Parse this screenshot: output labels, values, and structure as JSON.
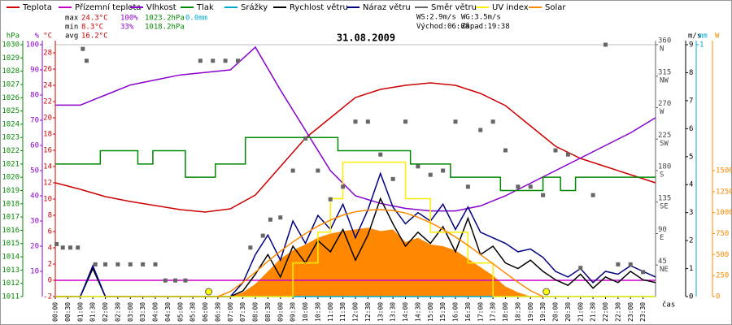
{
  "chart_data": {
    "type": "line",
    "title": "31.08.2009",
    "x_label": "čas",
    "xlim": [
      0,
      24
    ],
    "xticks": [
      {
        "value": 0,
        "label": "00:00"
      },
      {
        "value": 0.5,
        "label": "00:30"
      },
      {
        "value": 1,
        "label": "01:00"
      },
      {
        "value": 1.5,
        "label": "01:30"
      },
      {
        "value": 2,
        "label": "02:00"
      },
      {
        "value": 2.5,
        "label": "02:30"
      },
      {
        "value": 3,
        "label": "03:00"
      },
      {
        "value": 3.5,
        "label": "03:30"
      },
      {
        "value": 4,
        "label": "04:00"
      },
      {
        "value": 4.5,
        "label": "04:30"
      },
      {
        "value": 5,
        "label": "05:00"
      },
      {
        "value": 5.5,
        "label": "05:30"
      },
      {
        "value": 6,
        "label": "06:00"
      },
      {
        "value": 6.5,
        "label": "06:30"
      },
      {
        "value": 7,
        "label": "07:00"
      },
      {
        "value": 7.5,
        "label": "07:30"
      },
      {
        "value": 8,
        "label": "08:00"
      },
      {
        "value": 8.5,
        "label": "08:30"
      },
      {
        "value": 9,
        "label": "09:00"
      },
      {
        "value": 9.5,
        "label": "09:30"
      },
      {
        "value": 10,
        "label": "10:00"
      },
      {
        "value": 10.5,
        "label": "10:30"
      },
      {
        "value": 11,
        "label": "11:00"
      },
      {
        "value": 11.5,
        "label": "11:30"
      },
      {
        "value": 12,
        "label": "12:00"
      },
      {
        "value": 12.5,
        "label": "12:30"
      },
      {
        "value": 13,
        "label": "13:00"
      },
      {
        "value": 13.5,
        "label": "13:30"
      },
      {
        "value": 14,
        "label": "14:00"
      },
      {
        "value": 14.5,
        "label": "14:30"
      },
      {
        "value": 15,
        "label": "15:00"
      },
      {
        "value": 15.5,
        "label": "15:30"
      },
      {
        "value": 16,
        "label": "16:00"
      },
      {
        "value": 16.5,
        "label": "16:30"
      },
      {
        "value": 17,
        "label": "17:00"
      },
      {
        "value": 17.5,
        "label": "17:30"
      },
      {
        "value": 18,
        "label": "18:00"
      },
      {
        "value": 18.5,
        "label": "18:30"
      },
      {
        "value": 19,
        "label": "19:00"
      },
      {
        "value": 19.5,
        "label": "19:30"
      },
      {
        "value": 20,
        "label": "20:00"
      },
      {
        "value": 20.5,
        "label": "20:30"
      },
      {
        "value": 21,
        "label": "21:00"
      },
      {
        "value": 21.5,
        "label": "21:30"
      },
      {
        "value": 22,
        "label": "22:00"
      },
      {
        "value": 22.5,
        "label": "22:30"
      },
      {
        "value": 23,
        "label": "23:00"
      },
      {
        "value": 23.5,
        "label": "23:30"
      }
    ],
    "axes": {
      "hpa": {
        "label": "hPa",
        "color": "#008800",
        "lim": [
          1011,
          1030
        ],
        "ticks": [
          1011,
          1012,
          1013,
          1014,
          1015,
          1016,
          1017,
          1018,
          1019,
          1020,
          1021,
          1022,
          1023,
          1024,
          1025,
          1026,
          1027,
          1028,
          1029,
          1030
        ]
      },
      "pct": {
        "label": "%",
        "color": "#8800cc",
        "lim": [
          0,
          100
        ],
        "ticks": [
          10,
          20,
          30,
          40,
          50,
          60,
          70,
          80,
          90,
          100
        ]
      },
      "temp": {
        "label": "°C",
        "color": "#cc0000",
        "lim": [
          -2,
          29
        ],
        "ticks": [
          -2,
          0,
          2,
          4,
          6,
          8,
          10,
          12,
          14,
          16,
          18,
          20,
          22,
          24,
          26,
          28
        ]
      },
      "dir": {
        "color": "#666666",
        "lim": [
          0,
          360
        ],
        "ticks": [
          {
            "value": 45,
            "label": "NE"
          },
          {
            "value": 90,
            "label": "E"
          },
          {
            "value": 135,
            "label": "SE"
          },
          {
            "value": 180,
            "label": "S"
          },
          {
            "value": 225,
            "label": "SW"
          },
          {
            "value": 270,
            "label": "W"
          },
          {
            "value": 315,
            "label": "NW"
          },
          {
            "value": 360,
            "label": "N"
          }
        ]
      },
      "wind": {
        "label": "m/s",
        "color": "#000000",
        "lim": [
          0,
          9
        ],
        "ticks": [
          0,
          1,
          2,
          3,
          4,
          5,
          6,
          7,
          8,
          9
        ]
      },
      "mm": {
        "label": "mm",
        "color": "#00aacc",
        "lim": [
          0,
          1
        ],
        "ticks": [
          1
        ]
      },
      "solar": {
        "label": "W",
        "color": "#ff8800",
        "lim": [
          0,
          3000
        ],
        "ticks": [
          0,
          250,
          500,
          750,
          1000,
          1250,
          1500
        ]
      }
    },
    "x": [
      0,
      0.5,
      1,
      1.5,
      2,
      2.5,
      3,
      3.5,
      4,
      4.5,
      5,
      5.5,
      6,
      6.5,
      7,
      7.5,
      8,
      8.5,
      9,
      9.5,
      10,
      10.5,
      11,
      11.5,
      12,
      12.5,
      13,
      13.5,
      14,
      14.5,
      15,
      15.5,
      16,
      16.5,
      17,
      17.5,
      18,
      18.5,
      19,
      19.5,
      20,
      20.5,
      21,
      21.5,
      22,
      22.5,
      23,
      23.5,
      24
    ],
    "series": [
      {
        "name": "Teplota",
        "color": "#cc0000",
        "axis": "temp",
        "kind": "line",
        "x": [
          0,
          1,
          2,
          3,
          4,
          5,
          6,
          7,
          8,
          9,
          10,
          11,
          12,
          13,
          14,
          15,
          16,
          17,
          18,
          19,
          20,
          21,
          22,
          23,
          24
        ],
        "values": [
          12,
          11.2,
          10.3,
          9.7,
          9.2,
          8.7,
          8.4,
          8.8,
          10.5,
          14,
          17.5,
          20,
          22.5,
          23.5,
          24,
          24.3,
          24,
          23,
          21.5,
          19,
          16.5,
          15,
          14,
          13,
          12
        ]
      },
      {
        "name": "Přízemní teplota",
        "color": "#cc00cc",
        "axis": "temp",
        "kind": "line",
        "x": [
          0,
          24
        ],
        "values": [
          0,
          0
        ]
      },
      {
        "name": "Vlhkost",
        "color": "#8800cc",
        "axis": "pct",
        "kind": "line",
        "x": [
          0,
          1,
          2,
          3,
          4,
          5,
          6,
          7,
          8,
          9,
          10,
          11,
          12,
          13,
          14,
          15,
          16,
          17,
          18,
          19,
          20,
          21,
          22,
          23,
          24
        ],
        "values": [
          76,
          76,
          80,
          84,
          86,
          88,
          89,
          90,
          99,
          82,
          66,
          50,
          40,
          37,
          35,
          34,
          34,
          36,
          40,
          45,
          50,
          55,
          60,
          65,
          71
        ]
      },
      {
        "name": "Tlak",
        "color": "#008800",
        "axis": "hpa",
        "kind": "line",
        "x": [
          0,
          1.8,
          1.8,
          3.3,
          3.3,
          3.9,
          3.9,
          5.2,
          5.2,
          6.4,
          6.4,
          7.6,
          7.6,
          11.3,
          11.3,
          14.2,
          14.2,
          15.8,
          15.8,
          17.8,
          17.8,
          19.5,
          19.5,
          20.2,
          20.2,
          20.8,
          20.8,
          24
        ],
        "values": [
          1021,
          1021,
          1022,
          1022,
          1021,
          1021,
          1022,
          1022,
          1020,
          1020,
          1021,
          1021,
          1023,
          1023,
          1022,
          1022,
          1021,
          1021,
          1020,
          1020,
          1019,
          1019,
          1020,
          1020,
          1019,
          1019,
          1020,
          1020
        ]
      },
      {
        "name": "Srážky",
        "color": "#00aacc",
        "axis": "mm",
        "kind": "line",
        "x": [
          0,
          24
        ],
        "values": [
          0,
          0
        ]
      },
      {
        "name": "Rychlost větru",
        "color": "#000000",
        "axis": "wind",
        "kind": "line",
        "values": [
          0,
          0,
          0,
          1,
          0,
          0,
          0,
          0,
          0,
          0,
          0,
          0,
          0,
          0,
          0,
          0.2,
          0.8,
          1.5,
          0.7,
          1.8,
          1.2,
          2.0,
          1.6,
          2.4,
          1.3,
          2.2,
          3.5,
          2.6,
          1.8,
          2.3,
          1.9,
          2.5,
          1.6,
          2.8,
          1.5,
          1.8,
          1.2,
          1.0,
          1.3,
          0.9,
          0.6,
          0.4,
          0.8,
          0.3,
          0.7,
          0.5,
          0.9,
          0.6,
          0.5
        ]
      },
      {
        "name": "Náraz větru",
        "color": "#000080",
        "axis": "wind",
        "kind": "line",
        "values": [
          0,
          0,
          0,
          1.1,
          0,
          0,
          0,
          0,
          0,
          0,
          0,
          0,
          0,
          0,
          0,
          0.5,
          1.5,
          2.2,
          1.3,
          2.7,
          1.9,
          2.9,
          2.4,
          3.3,
          2.1,
          3.1,
          4.4,
          3.2,
          2.6,
          3.0,
          2.7,
          3.3,
          2.4,
          3.2,
          2.3,
          2.1,
          1.9,
          1.6,
          1.7,
          1.4,
          0.9,
          0.7,
          1.0,
          0.5,
          0.9,
          0.8,
          1.1,
          0.9,
          0.7
        ]
      },
      {
        "name": "Směr větru",
        "color": "#666666",
        "axis": "dir",
        "kind": "squares",
        "x": [
          0.05,
          0.3,
          0.6,
          0.9,
          1.1,
          1.25,
          1.6,
          2.0,
          2.5,
          3.0,
          3.5,
          4.0,
          4.4,
          4.8,
          5.2,
          5.8,
          6.3,
          6.8,
          7.3,
          7.8,
          8.3,
          8.6,
          9.0,
          9.5,
          10.0,
          10.5,
          11.0,
          11.5,
          12.0,
          12.5,
          13.0,
          13.5,
          14.0,
          14.5,
          15.0,
          15.5,
          16.0,
          16.5,
          17.0,
          17.5,
          18.0,
          18.5,
          19.0,
          19.5,
          20.0,
          20.5,
          21.0,
          21.5,
          22.0,
          22.5,
          23.0,
          23.5
        ],
        "values": [
          75,
          70,
          70,
          70,
          354,
          337,
          46,
          46,
          46,
          46,
          46,
          46,
          23,
          23,
          23,
          337,
          337,
          337,
          337,
          70,
          87,
          110,
          113,
          180,
          226,
          180,
          139,
          157,
          250,
          250,
          203,
          168,
          250,
          186,
          174,
          180,
          250,
          157,
          238,
          250,
          209,
          157,
          157,
          145,
          209,
          203,
          41,
          145,
          360,
          46,
          46,
          35
        ]
      },
      {
        "name": "UV index",
        "color": "#ffee00",
        "axis": "wind",
        "kind": "step",
        "values": [
          0,
          0,
          0,
          0,
          0,
          0,
          0,
          0,
          0,
          0,
          0,
          0,
          0,
          0,
          0,
          0,
          0,
          0,
          0,
          1.2,
          1.2,
          2.3,
          3.5,
          4.8,
          4.8,
          4.8,
          4.8,
          4.8,
          3.5,
          3.5,
          2.3,
          2.3,
          2.3,
          1.2,
          1.2,
          0,
          0,
          0,
          0,
          0,
          0,
          0,
          0,
          0,
          0,
          0,
          0,
          0,
          0
        ]
      },
      {
        "name": "Solar",
        "color": "#ff8800",
        "axis": "solar",
        "kind": "area",
        "values": [
          0,
          0,
          0,
          0,
          0,
          0,
          0,
          0,
          0,
          0,
          0,
          0,
          0,
          0,
          0,
          50,
          150,
          300,
          450,
          550,
          620,
          700,
          750,
          780,
          800,
          820,
          780,
          800,
          650,
          700,
          620,
          600,
          550,
          450,
          350,
          250,
          120,
          50,
          0,
          0,
          0,
          0,
          0,
          0,
          0,
          0,
          0,
          0,
          0
        ]
      },
      {
        "color": "#ff8800",
        "axis": "solar",
        "kind": "line",
        "values": [
          null,
          null,
          null,
          null,
          null,
          null,
          null,
          null,
          null,
          null,
          null,
          null,
          null,
          0,
          60,
          170,
          290,
          420,
          540,
          650,
          750,
          840,
          910,
          970,
          1010,
          1030,
          1035,
          1025,
          995,
          945,
          880,
          800,
          710,
          610,
          500,
          390,
          280,
          170,
          70,
          0,
          null,
          null,
          null,
          null,
          null,
          null,
          null,
          null,
          null
        ]
      }
    ],
    "stats": [
      {
        "label": "max",
        "temp": "24.3°C",
        "hum": "100%",
        "press": "1023.2hPa",
        "rain": "0.0mm"
      },
      {
        "label": "min",
        "temp": "8.3°C",
        "hum": "33%",
        "press": "1018.2hPa"
      },
      {
        "label": "avg",
        "temp": "16.2°C"
      }
    ],
    "wind_stats": {
      "ws": "WS:2.9m/s",
      "wg": "WG:3.5m/s"
    },
    "sun": {
      "rise_label": "Východ:",
      "rise": "06:08",
      "set_label": "Západ:",
      "set": "19:38"
    }
  }
}
